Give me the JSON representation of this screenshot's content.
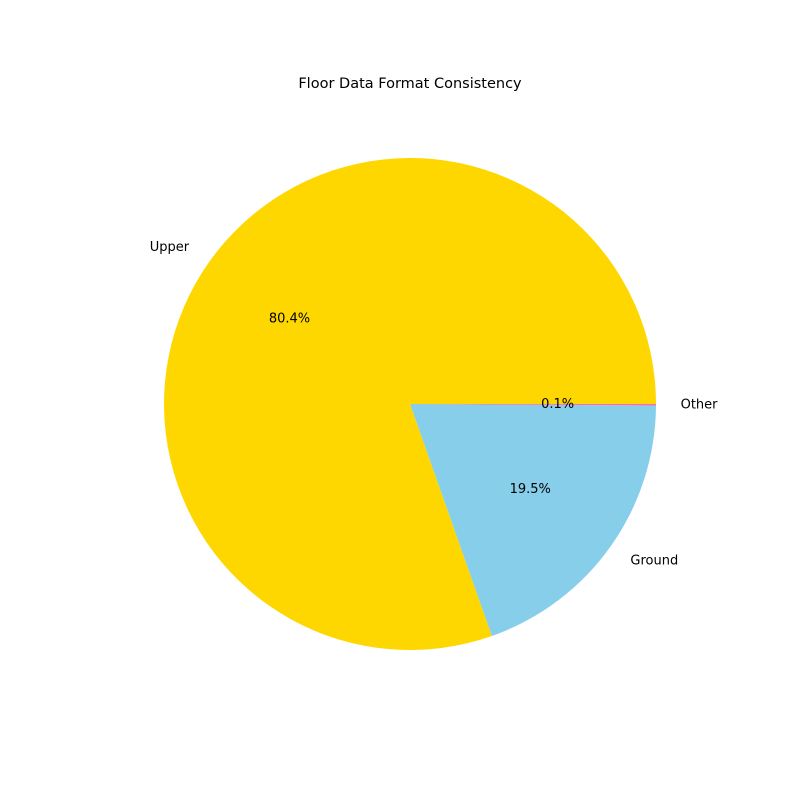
{
  "chart_data": {
    "type": "pie",
    "title": "Floor Data Format Consistency",
    "slices": [
      {
        "label": "Upper",
        "value": 80.4,
        "pct_label": "80.4%",
        "color": "#FFD700"
      },
      {
        "label": "Ground",
        "value": 19.5,
        "pct_label": "19.5%",
        "color": "#87CEEB"
      },
      {
        "label": "Other",
        "value": 0.1,
        "pct_label": "0.1%",
        "color": "#FF69B4"
      }
    ],
    "start_angle_deg": 0,
    "direction": "counterclockwise",
    "legend": "none"
  }
}
